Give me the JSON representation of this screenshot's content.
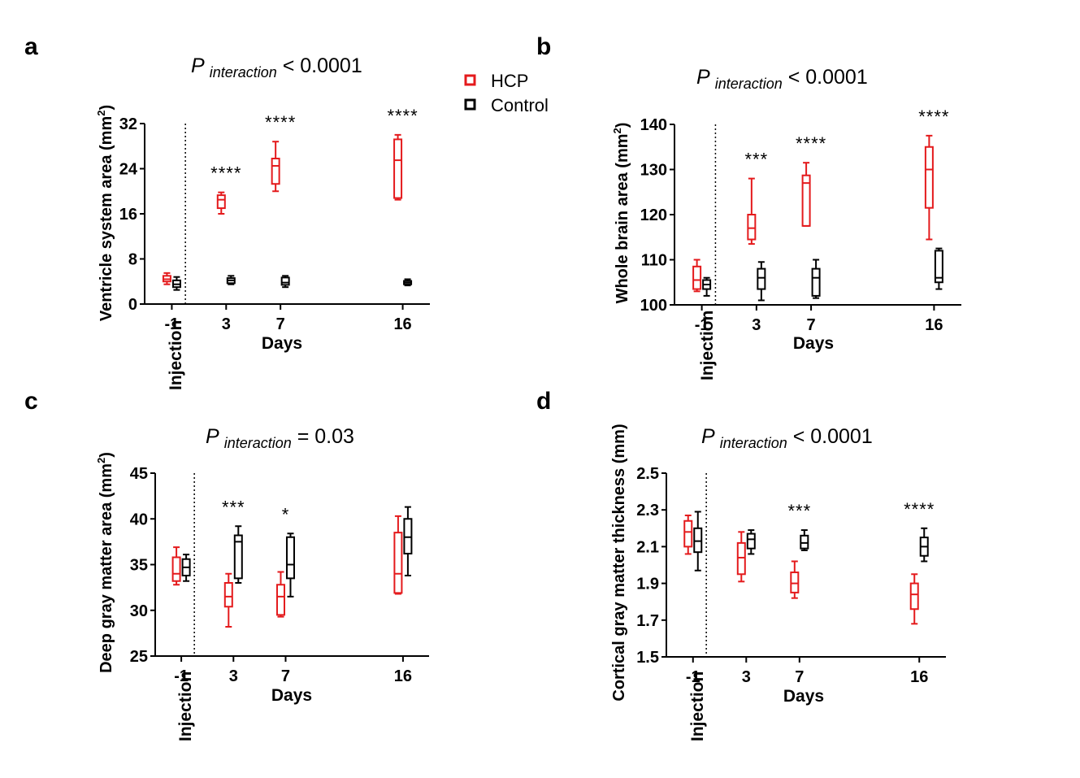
{
  "legend": {
    "items": [
      {
        "label": "HCP",
        "color": "#e41a1c"
      },
      {
        "label": "Control",
        "color": "#000000"
      }
    ]
  },
  "chart_data": [
    {
      "id": "a",
      "panel_letter": "a",
      "type": "box",
      "title_prefix": "P ",
      "title_sub": "interaction",
      "title_suffix": " < 0.0001",
      "ylabel": "Ventricle system area (mm",
      "ylabel_sup": "2",
      "ylabel_close": ")",
      "xlabel": "Days",
      "injection_label": "Injection",
      "ylim": [
        0,
        32
      ],
      "yticks": [
        "0",
        "8",
        "16",
        "24",
        "32"
      ],
      "xlim": [
        -3,
        18
      ],
      "injection_day": 0,
      "x": [
        -1,
        3,
        7,
        16
      ],
      "xtick_labels": [
        "-1",
        "3",
        "7",
        "16"
      ],
      "significance": [
        "",
        "****",
        "****",
        "****"
      ],
      "series": [
        {
          "name": "HCP",
          "color": "#e41a1c",
          "boxes": [
            [
              3.5,
              4.0,
              4.4,
              5.0,
              5.5
            ],
            [
              16.0,
              17.0,
              18.5,
              19.3,
              19.8
            ],
            [
              20.0,
              21.3,
              24.5,
              25.8,
              28.8
            ],
            [
              18.5,
              18.8,
              25.5,
              29.2,
              30.0
            ]
          ]
        },
        {
          "name": "Control",
          "color": "#000000",
          "boxes": [
            [
              2.5,
              3.0,
              3.5,
              4.2,
              4.8
            ],
            [
              3.5,
              3.7,
              4.2,
              4.6,
              5.0
            ],
            [
              3.0,
              3.4,
              3.8,
              4.7,
              5.0
            ],
            [
              3.3,
              3.5,
              3.8,
              4.1,
              4.4
            ]
          ]
        }
      ]
    },
    {
      "id": "b",
      "panel_letter": "b",
      "type": "box",
      "title_prefix": "P ",
      "title_sub": "interaction",
      "title_suffix": " < 0.0001",
      "ylabel": "Whole brain area (mm",
      "ylabel_sup": "2",
      "ylabel_close": ")",
      "xlabel": "Days",
      "injection_label": "Injection",
      "ylim": [
        100,
        140
      ],
      "yticks": [
        "100",
        "110",
        "120",
        "130",
        "140"
      ],
      "xlim": [
        -3,
        18
      ],
      "injection_day": 0,
      "x": [
        -1,
        3,
        7,
        16
      ],
      "xtick_labels": [
        "-1",
        "3",
        "7",
        "16"
      ],
      "significance": [
        "",
        "***",
        "****",
        "****"
      ],
      "series": [
        {
          "name": "HCP",
          "color": "#e41a1c",
          "boxes": [
            [
              103.0,
              103.5,
              105.5,
              108.5,
              110.0
            ],
            [
              113.5,
              114.5,
              117.0,
              120.0,
              128.0
            ],
            [
              117.5,
              117.5,
              127.0,
              128.7,
              131.5
            ],
            [
              114.5,
              121.5,
              130.0,
              135.0,
              137.5
            ]
          ]
        },
        {
          "name": "Control",
          "color": "#000000",
          "boxes": [
            [
              102.0,
              103.5,
              104.5,
              105.5,
              106.0
            ],
            [
              101.0,
              103.5,
              106.0,
              108.0,
              109.5
            ],
            [
              101.5,
              102.0,
              106.0,
              108.0,
              110.0
            ],
            [
              103.5,
              105.0,
              106.0,
              112.0,
              112.5
            ]
          ]
        }
      ]
    },
    {
      "id": "c",
      "panel_letter": "c",
      "type": "box",
      "title_prefix": "P ",
      "title_sub": "interaction",
      "title_suffix": " = 0.03",
      "ylabel": "Deep gray matter area (mm",
      "ylabel_sup": "2",
      "ylabel_close": ")",
      "xlabel": "Days",
      "injection_label": "Injection",
      "ylim": [
        25,
        45
      ],
      "yticks": [
        "25",
        "30",
        "35",
        "40",
        "45"
      ],
      "xlim": [
        -3,
        18
      ],
      "injection_day": 0,
      "x": [
        -1,
        3,
        7,
        16
      ],
      "xtick_labels": [
        "-1",
        "3",
        "7",
        "16"
      ],
      "significance": [
        "",
        "***",
        "*",
        ""
      ],
      "series": [
        {
          "name": "HCP",
          "color": "#e41a1c",
          "boxes": [
            [
              32.8,
              33.2,
              34.0,
              35.8,
              36.9
            ],
            [
              28.2,
              30.4,
              31.5,
              33.0,
              34.0
            ],
            [
              29.3,
              29.5,
              31.5,
              32.8,
              34.2
            ],
            [
              31.8,
              31.9,
              34.0,
              38.5,
              40.3
            ]
          ]
        },
        {
          "name": "Control",
          "color": "#000000",
          "boxes": [
            [
              33.2,
              33.8,
              34.7,
              35.6,
              36.1
            ],
            [
              33.0,
              33.5,
              37.5,
              38.2,
              39.2
            ],
            [
              31.5,
              33.5,
              35.0,
              38.0,
              38.4
            ],
            [
              33.8,
              36.2,
              38.0,
              40.0,
              41.3
            ]
          ]
        }
      ]
    },
    {
      "id": "d",
      "panel_letter": "d",
      "type": "box",
      "title_prefix": "P ",
      "title_sub": "interaction",
      "title_suffix": " < 0.0001",
      "ylabel": "Cortical gray matter thickness (mm)",
      "ylabel_sup": "",
      "ylabel_close": "",
      "xlabel": "Days",
      "injection_label": "Injection",
      "ylim": [
        1.5,
        2.5
      ],
      "yticks": [
        "1.5",
        "1.7",
        "1.9",
        "2.1",
        "2.3",
        "2.5"
      ],
      "xlim": [
        -3,
        18
      ],
      "injection_day": 0,
      "x": [
        -1,
        3,
        7,
        16
      ],
      "xtick_labels": [
        "-1",
        "3",
        "7",
        "16"
      ],
      "significance": [
        "",
        "",
        "***",
        "****"
      ],
      "series": [
        {
          "name": "HCP",
          "color": "#e41a1c",
          "boxes": [
            [
              2.06,
              2.1,
              2.18,
              2.24,
              2.27
            ],
            [
              1.91,
              1.95,
              2.04,
              2.12,
              2.18
            ],
            [
              1.82,
              1.85,
              1.9,
              1.96,
              2.02
            ],
            [
              1.68,
              1.76,
              1.84,
              1.9,
              1.95
            ]
          ]
        },
        {
          "name": "Control",
          "color": "#000000",
          "boxes": [
            [
              1.97,
              2.07,
              2.13,
              2.2,
              2.29
            ],
            [
              2.06,
              2.09,
              2.14,
              2.17,
              2.19
            ],
            [
              2.08,
              2.09,
              2.12,
              2.16,
              2.19
            ],
            [
              2.02,
              2.05,
              2.1,
              2.15,
              2.2
            ]
          ]
        }
      ]
    }
  ]
}
